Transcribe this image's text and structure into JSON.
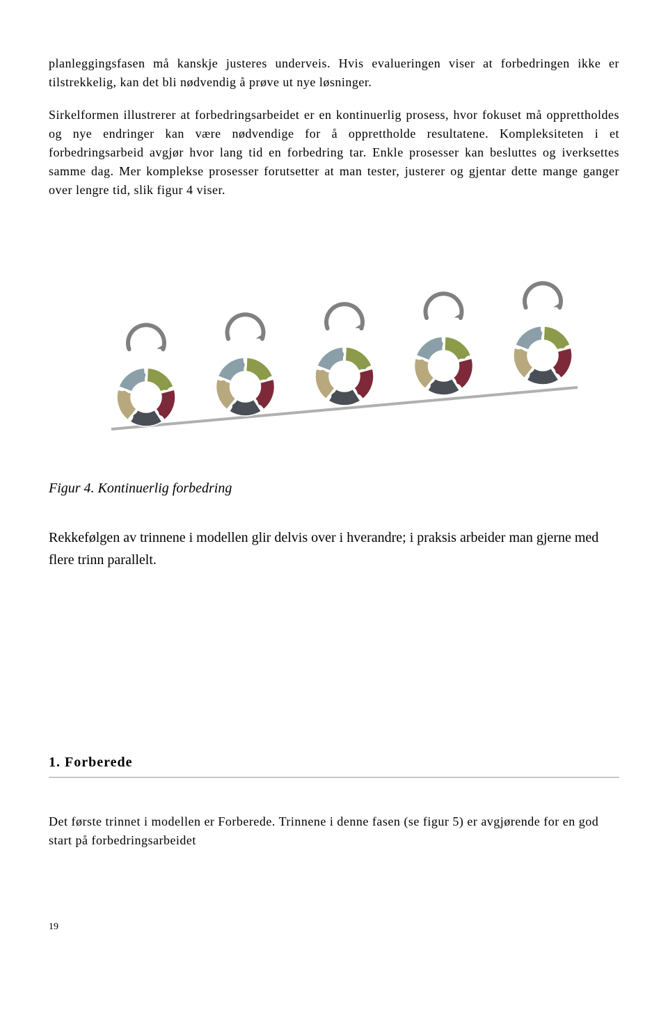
{
  "paragraphs": {
    "p1": "planleggingsfasen må kanskje justeres underveis. Hvis evalueringen viser at forbedringen ikke er tilstrekkelig, kan det bli nødvendig å prøve ut nye løsninger.",
    "p2": "Sirkelformen illustrerer at forbedringsarbeidet er en kontinuerlig prosess, hvor fokuset må opprettholdes og nye endringer kan være nødvendige for å opprettholde resultatene. Kompleksiteten i et forbedringsarbeid avgjør hvor lang tid en forbedring tar. Enkle prosesser kan besluttes og iverksettes samme dag. Mer komplekse prosesser forutsetter at man tester, justerer og gjentar dette mange ganger over lengre tid, slik figur 4 viser."
  },
  "figure": {
    "caption": "Figur 4. Kontinuerlig forbedring",
    "follow_text": "Rekkefølgen av trinnene i modellen glir delvis over i hverandre; i praksis arbeider man gjerne med flere trinn parallelt.",
    "wheel_colors": {
      "seg1": "#8b9b4a",
      "seg2": "#7d2939",
      "seg3": "#4a4e55",
      "seg4": "#b8a87e",
      "seg5": "#8a9fa8"
    },
    "arrow_color": "#808080",
    "ramp_color": "#b0b0b0",
    "background": "#ffffff",
    "num_wheels": 5
  },
  "section": {
    "heading": "1. Forberede",
    "body": "Det første trinnet i modellen er Forberede. Trinnene i denne fasen (se figur 5) er avgjørende for en god start på forbedringsarbeidet"
  },
  "page_number": "19"
}
